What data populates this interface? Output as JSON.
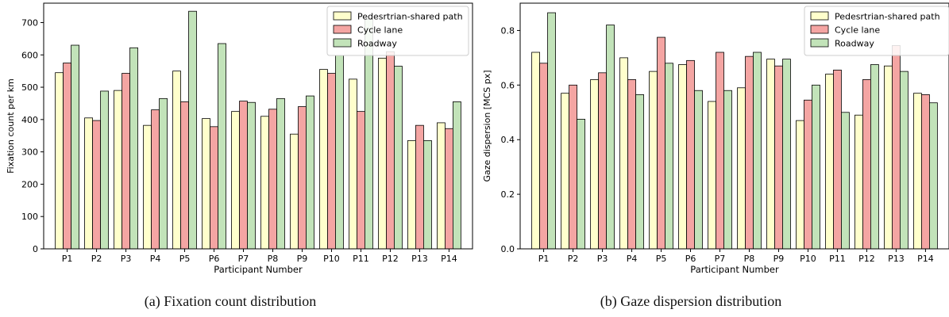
{
  "colors": {
    "pedestrian": "#ffffcc",
    "cycle": "#f4a5a3",
    "roadway": "#c2e3b9",
    "edge": "#000000"
  },
  "chart_data": [
    {
      "type": "bar",
      "xlabel": "Participant Number",
      "ylabel": "Fixation count per km",
      "categories": [
        "P1",
        "P2",
        "P3",
        "P4",
        "P5",
        "P6",
        "P7",
        "P8",
        "P9",
        "P10",
        "P11",
        "P12",
        "P13",
        "P14"
      ],
      "ylim": [
        0,
        760
      ],
      "yticks": [
        0,
        100,
        200,
        300,
        400,
        500,
        600,
        700
      ],
      "ytick_labels": [
        "0",
        "100",
        "200",
        "300",
        "400",
        "500",
        "600",
        "700"
      ],
      "legend_position": "top-right",
      "series": [
        {
          "name": "Pedesrtrian-shared path",
          "color_key": "pedestrian",
          "values": [
            545,
            405,
            490,
            382,
            550,
            403,
            425,
            410,
            355,
            555,
            525,
            590,
            335,
            390
          ]
        },
        {
          "name": "Cycle lane",
          "color_key": "cycle",
          "values": [
            575,
            397,
            543,
            430,
            455,
            378,
            457,
            432,
            440,
            543,
            425,
            610,
            382,
            372
          ]
        },
        {
          "name": "Roadway",
          "color_key": "roadway",
          "values": [
            630,
            488,
            622,
            465,
            735,
            635,
            453,
            465,
            473,
            598,
            710,
            565,
            335,
            455
          ]
        }
      ],
      "caption": "(a) Fixation count distribution"
    },
    {
      "type": "bar",
      "xlabel": "Participant Number",
      "ylabel": "Gaze dispersion [MCS px]",
      "categories": [
        "P1",
        "P2",
        "P3",
        "P4",
        "P5",
        "P6",
        "P7",
        "P8",
        "P9",
        "P10",
        "P11",
        "P12",
        "P13",
        "P14"
      ],
      "ylim": [
        0,
        0.9
      ],
      "yticks": [
        0.0,
        0.2,
        0.4,
        0.6,
        0.8
      ],
      "ytick_labels": [
        "0.0",
        "0.2",
        "0.4",
        "0.6",
        "0.8"
      ],
      "legend_position": "top-right",
      "series": [
        {
          "name": "Pedesrtrian-shared path",
          "color_key": "pedestrian",
          "values": [
            0.72,
            0.57,
            0.62,
            0.7,
            0.65,
            0.675,
            0.54,
            0.59,
            0.695,
            0.47,
            0.64,
            0.49,
            0.67,
            0.57
          ]
        },
        {
          "name": "Cycle lane",
          "color_key": "cycle",
          "values": [
            0.68,
            0.6,
            0.645,
            0.62,
            0.775,
            0.69,
            0.72,
            0.705,
            0.67,
            0.545,
            0.655,
            0.62,
            0.745,
            0.565
          ]
        },
        {
          "name": "Roadway",
          "color_key": "roadway",
          "values": [
            0.865,
            0.475,
            0.82,
            0.565,
            0.68,
            0.58,
            0.58,
            0.72,
            0.695,
            0.6,
            0.5,
            0.675,
            0.65,
            0.535
          ]
        }
      ],
      "caption": "(b) Gaze dispersion distribution"
    }
  ]
}
